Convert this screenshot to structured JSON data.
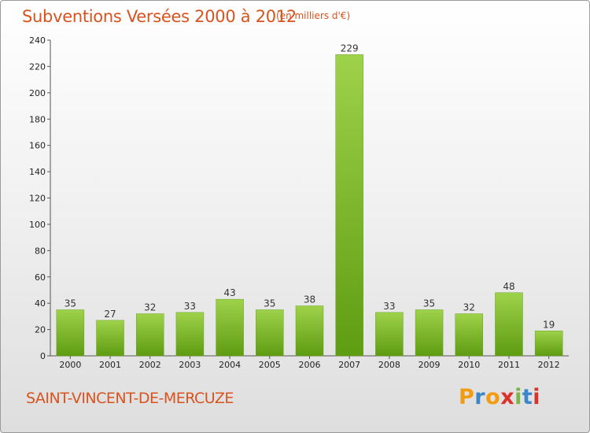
{
  "header": {
    "title": "Subventions Versées 2000 à 2012",
    "unit": "(en milliers d'€)"
  },
  "footer": {
    "commune": "SAINT-VINCENT-DE-MERCUZE",
    "logo_letters": [
      "P",
      "r",
      "o",
      "x",
      "i",
      "t",
      "i"
    ],
    "logo_colors": [
      "#f39c12",
      "#3a86c8",
      "#f39c12",
      "#d8322a",
      "#7ab648",
      "#3a86c8",
      "#d8322a"
    ]
  },
  "colors": {
    "title": "#d9531e",
    "bar_top": "#9ed24a",
    "bar_bottom": "#5e9c12"
  },
  "chart_data": {
    "type": "bar",
    "categories": [
      "2000",
      "2001",
      "2002",
      "2003",
      "2004",
      "2005",
      "2006",
      "2007",
      "2008",
      "2009",
      "2010",
      "2011",
      "2012"
    ],
    "values": [
      35,
      27,
      32,
      33,
      43,
      35,
      38,
      229,
      33,
      35,
      32,
      48,
      19
    ],
    "title": "Subventions Versées 2000 à 2012",
    "xlabel": "",
    "ylabel": "",
    "ylim": [
      0,
      240
    ],
    "yticks": [
      0,
      20,
      40,
      60,
      80,
      100,
      120,
      140,
      160,
      180,
      200,
      220,
      240
    ],
    "grid": false,
    "legend": "none"
  }
}
